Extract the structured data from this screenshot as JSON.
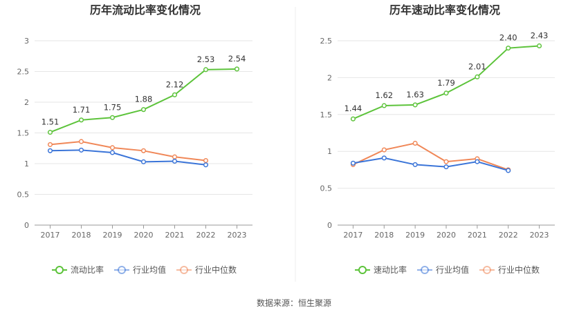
{
  "source": "数据来源：恒生聚源",
  "colors": {
    "main": "#5cc33a",
    "avg": "#3a74d8",
    "median": "#f08757",
    "grid": "#e6e6e6",
    "axis": "#999999"
  },
  "chart_data": [
    {
      "type": "line",
      "title": "历年流动比率变化情况",
      "categories": [
        "2017",
        "2018",
        "2019",
        "2020",
        "2021",
        "2022",
        "2023"
      ],
      "ylim": [
        0,
        3
      ],
      "yticks": [
        "0",
        "0.5",
        "1",
        "1.5",
        "2",
        "2.5",
        "3"
      ],
      "grid": true,
      "legend": "bottom",
      "series": [
        {
          "name": "流动比率",
          "values": [
            1.51,
            1.71,
            1.75,
            1.88,
            2.12,
            2.53,
            2.54
          ],
          "labels": [
            "1.51",
            "1.71",
            "1.75",
            "1.88",
            "2.12",
            "2.53",
            "2.54"
          ]
        },
        {
          "name": "行业均值",
          "values": [
            1.21,
            1.22,
            1.18,
            1.03,
            1.04,
            0.98,
            null
          ]
        },
        {
          "name": "行业中位数",
          "values": [
            1.31,
            1.36,
            1.26,
            1.21,
            1.11,
            1.05,
            null
          ]
        }
      ]
    },
    {
      "type": "line",
      "title": "历年速动比率变化情况",
      "categories": [
        "2017",
        "2018",
        "2019",
        "2020",
        "2021",
        "2022",
        "2023"
      ],
      "ylim": [
        0,
        2.5
      ],
      "yticks": [
        "0",
        "0.5",
        "1",
        "1.5",
        "2",
        "2.5"
      ],
      "grid": true,
      "legend": "bottom",
      "series": [
        {
          "name": "速动比率",
          "values": [
            1.44,
            1.62,
            1.63,
            1.79,
            2.01,
            2.4,
            2.43
          ],
          "labels": [
            "1.44",
            "1.62",
            "1.63",
            "1.79",
            "2.01",
            "2.40",
            "2.43"
          ]
        },
        {
          "name": "行业均值",
          "values": [
            0.84,
            0.91,
            0.82,
            0.79,
            0.86,
            0.74,
            null
          ]
        },
        {
          "name": "行业中位数",
          "values": [
            0.82,
            1.02,
            1.11,
            0.86,
            0.9,
            0.75,
            null
          ]
        }
      ]
    }
  ]
}
